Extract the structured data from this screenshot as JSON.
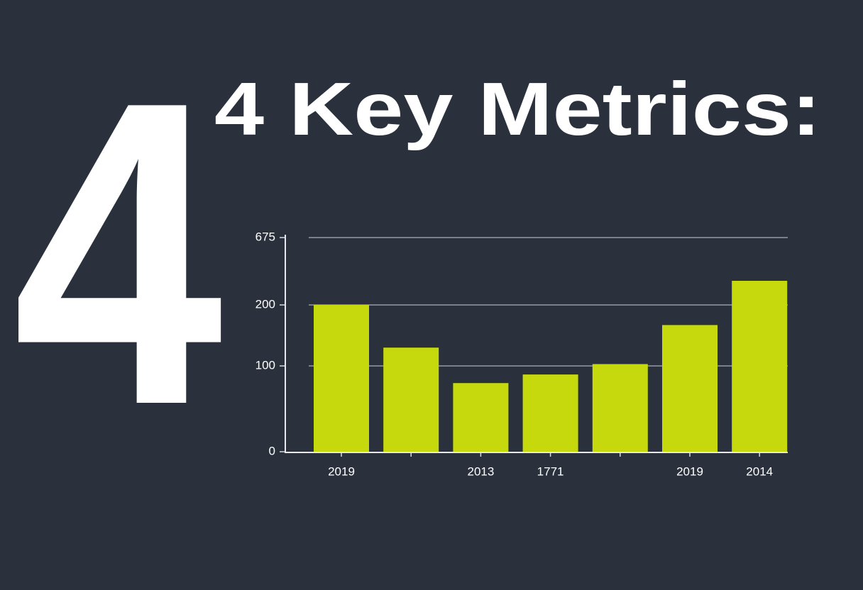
{
  "big_number": "4",
  "chart_data": {
    "type": "bar",
    "title": "4 Key Metrics:",
    "categories": [
      "2019",
      null,
      "2013",
      "1771",
      null,
      "2019",
      "2014"
    ],
    "values": [
      201,
      130,
      80,
      90,
      103,
      167,
      370
    ],
    "color": "#c5d90c",
    "ylim": [
      0,
      675
    ],
    "yticks": [
      0,
      100,
      200,
      675
    ],
    "grid": true
  }
}
